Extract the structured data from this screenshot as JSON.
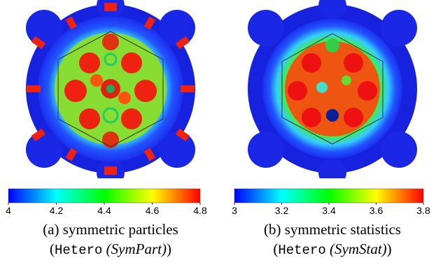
{
  "panels": [
    {
      "id": "a",
      "caption_line1": "(a) symmetric particles",
      "caption_open": "(",
      "caption_code": "Hetero",
      "caption_method": "(SymPart)",
      "caption_close": ")",
      "colorbar": {
        "min": 4,
        "max": 4.8,
        "ticks": [
          "4",
          "4.2",
          "4.4",
          "4.6",
          "4.8"
        ]
      }
    },
    {
      "id": "b",
      "caption_line1": "(b) symmetric statistics",
      "caption_open": "(",
      "caption_code": "Hetero",
      "caption_method": "(SymStat)",
      "caption_close": ")",
      "colorbar": {
        "min": 3,
        "max": 3.8,
        "ticks": [
          "3",
          "3.2",
          "3.4",
          "3.6",
          "3.8"
        ]
      }
    }
  ],
  "colormap": [
    "#0000ff",
    "#00ffff",
    "#00ff00",
    "#ffff00",
    "#ff0000"
  ]
}
